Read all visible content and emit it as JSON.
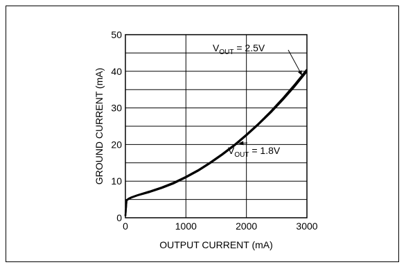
{
  "chart_data": {
    "type": "line",
    "title": "",
    "xlabel": "OUTPUT CURRENT (mA)",
    "ylabel": "GROUND CURRENT (mA)",
    "xlim": [
      0,
      3000
    ],
    "ylim": [
      0,
      50
    ],
    "xticks": [
      0,
      1000,
      2000,
      3000
    ],
    "yticks": [
      0,
      10,
      20,
      30,
      40,
      50
    ],
    "grid": true,
    "line_color": "#000000",
    "series": [
      {
        "name": "VOUT = 2.5V",
        "label_main": "V",
        "label_sub": "OUT",
        "label_rest": " = 2.5V",
        "x": [
          0,
          20,
          50,
          100,
          200,
          400,
          600,
          800,
          1000,
          1200,
          1400,
          1600,
          1800,
          2000,
          2200,
          2400,
          2600,
          2800,
          3000
        ],
        "y": [
          0.5,
          4.8,
          5.2,
          5.6,
          6.2,
          7.2,
          8.3,
          9.6,
          11.2,
          13.0,
          15.1,
          17.4,
          19.9,
          22.7,
          25.7,
          29.0,
          32.6,
          36.4,
          40.5
        ]
      },
      {
        "name": "VOUT = 1.8V",
        "label_main": "V",
        "label_sub": "OUT",
        "label_rest": " = 1.8V",
        "x": [
          0,
          20,
          50,
          100,
          200,
          400,
          600,
          800,
          1000,
          1200,
          1400,
          1600,
          1800,
          2000,
          2200,
          2400,
          2600,
          2800,
          3000
        ],
        "y": [
          0.5,
          4.7,
          5.1,
          5.5,
          6.1,
          7.0,
          8.1,
          9.4,
          11.0,
          12.8,
          14.9,
          17.2,
          19.7,
          22.5,
          25.5,
          28.7,
          32.2,
          35.9,
          40.0
        ]
      }
    ]
  }
}
